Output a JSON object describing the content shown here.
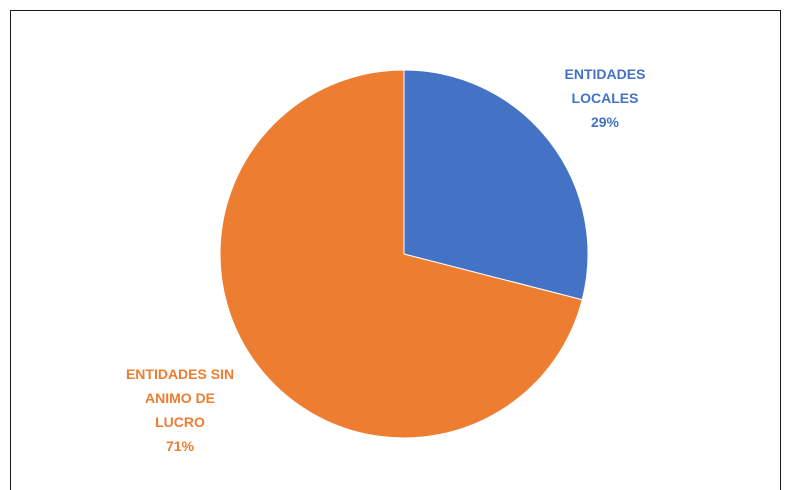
{
  "chart_data": {
    "type": "pie",
    "slices": [
      {
        "label_lines": [
          "ENTIDADES",
          "LOCALES"
        ],
        "percent_label": "29%",
        "value": 29,
        "color": "#4472C4"
      },
      {
        "label_lines": [
          "ENTIDADES SIN",
          "ANIMO DE",
          "LUCRO"
        ],
        "percent_label": "71%",
        "value": 71,
        "color": "#ED7D31"
      }
    ]
  }
}
